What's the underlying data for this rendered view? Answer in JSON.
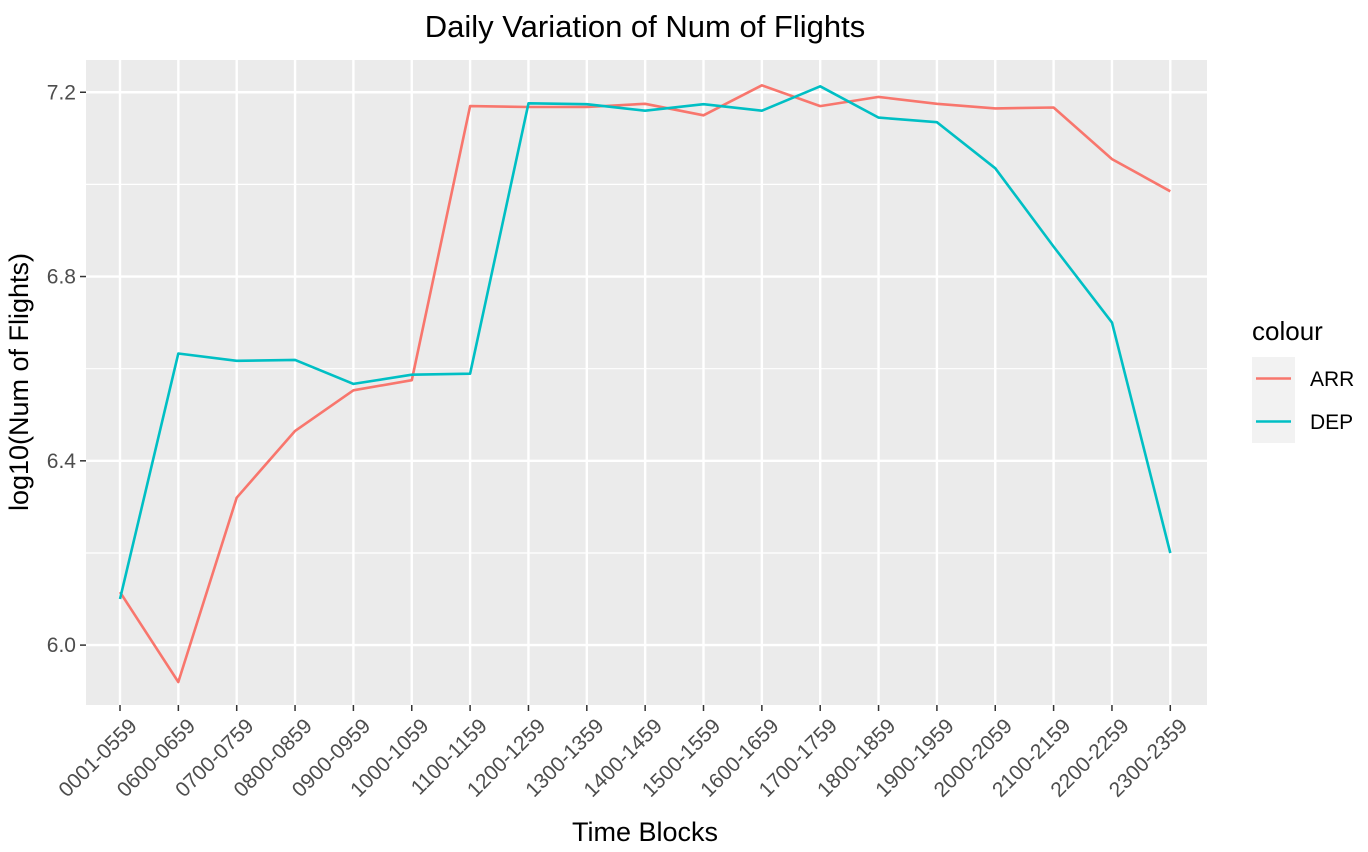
{
  "chart_data": {
    "type": "line",
    "title": "Daily Variation of Num of Flights",
    "xlabel": "Time Blocks",
    "ylabel": "log10(Num of Flights)",
    "categories": [
      "0001-0559",
      "0600-0659",
      "0700-0759",
      "0800-0859",
      "0900-0959",
      "1000-1059",
      "1100-1159",
      "1200-1259",
      "1300-1359",
      "1400-1459",
      "1500-1559",
      "1600-1659",
      "1700-1759",
      "1800-1859",
      "1900-1959",
      "2000-2059",
      "2100-2159",
      "2200-2259",
      "2300-2359"
    ],
    "ylim": [
      5.87,
      7.27
    ],
    "yticks": [
      6.0,
      6.4,
      6.8,
      7.2
    ],
    "ytick_labels": [
      "6.0",
      "6.4",
      "6.8",
      "7.2"
    ],
    "grid": true,
    "legend": {
      "title": "colour",
      "position": "right"
    },
    "series": [
      {
        "name": "ARR",
        "color": "#F8766D",
        "values": [
          6.115,
          5.92,
          6.32,
          6.465,
          6.553,
          6.575,
          7.17,
          7.168,
          7.168,
          7.175,
          7.15,
          7.215,
          7.17,
          7.19,
          7.175,
          7.165,
          7.167,
          7.055,
          6.985
        ]
      },
      {
        "name": "DEP",
        "color": "#00BFC4",
        "values": [
          6.1,
          6.633,
          6.617,
          6.619,
          6.567,
          6.587,
          6.589,
          7.176,
          7.174,
          7.16,
          7.174,
          7.16,
          7.213,
          7.145,
          7.135,
          7.035,
          6.865,
          6.7,
          6.2
        ]
      }
    ]
  }
}
